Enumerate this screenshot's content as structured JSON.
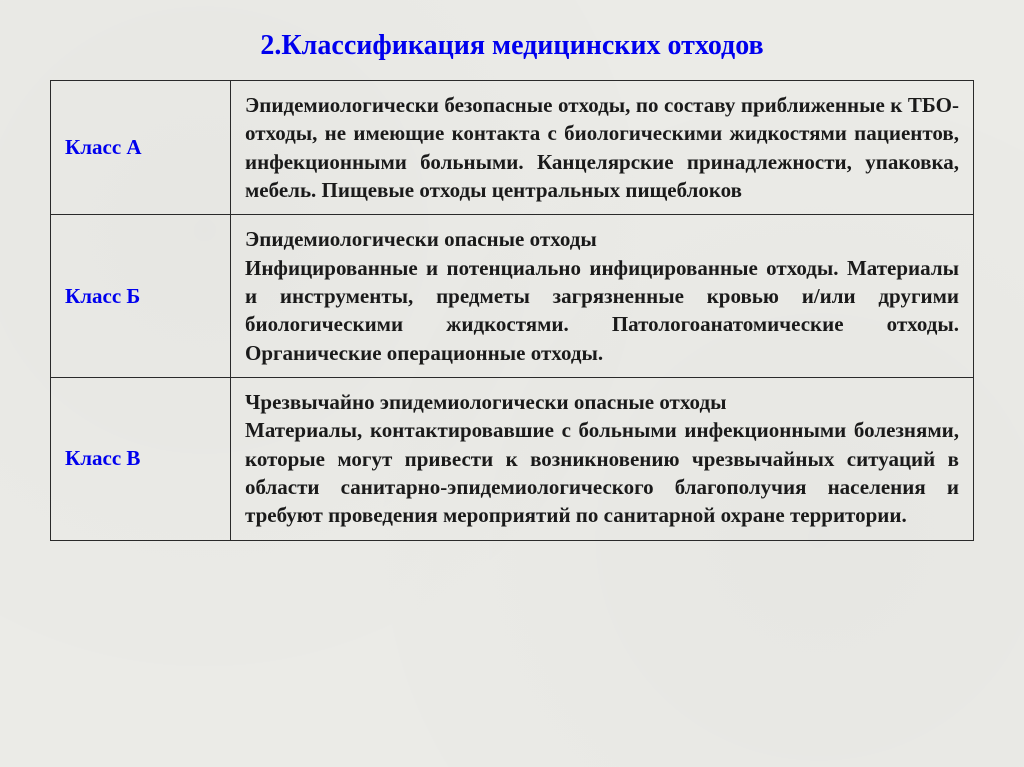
{
  "title": "2.Классификация медицинских отходов",
  "table": {
    "border_color": "#2a2a2a",
    "label_color": "#0000ee",
    "text_color": "#1a1a1a",
    "background_color": "#ebebe7",
    "title_fontsize": 28,
    "label_fontsize": 21,
    "desc_fontsize": 21,
    "rows": [
      {
        "label": "Класс А",
        "description": "Эпидемиологически безопасные отходы, по составу приближенные к ТБО- отходы, не имеющие контакта с биологическими жидкостями пациентов, инфекционными больными. Канцелярские принадлежности, упаковка, мебель. Пищевые отходы центральных пищеблоков"
      },
      {
        "label": "Класс Б",
        "description": "Эпидемиологически опасные отходы\nИнфицированные и потенциально инфицированные отходы. Материалы и инструменты, предметы загрязненные кровью и/или другими биологическими жидкостями. Патологоанатомические отходы. Органические операционные отходы."
      },
      {
        "label": "Класс В",
        "description": "Чрезвычайно эпидемиологически  опасные отходы\nМатериалы, контактировавшие с больными инфекционными болезнями, которые могут привести к возникновению чрезвычайных ситуаций в области санитарно-эпидемиологического благополучия населения и требуют проведения мероприятий по санитарной охране территории."
      }
    ]
  }
}
